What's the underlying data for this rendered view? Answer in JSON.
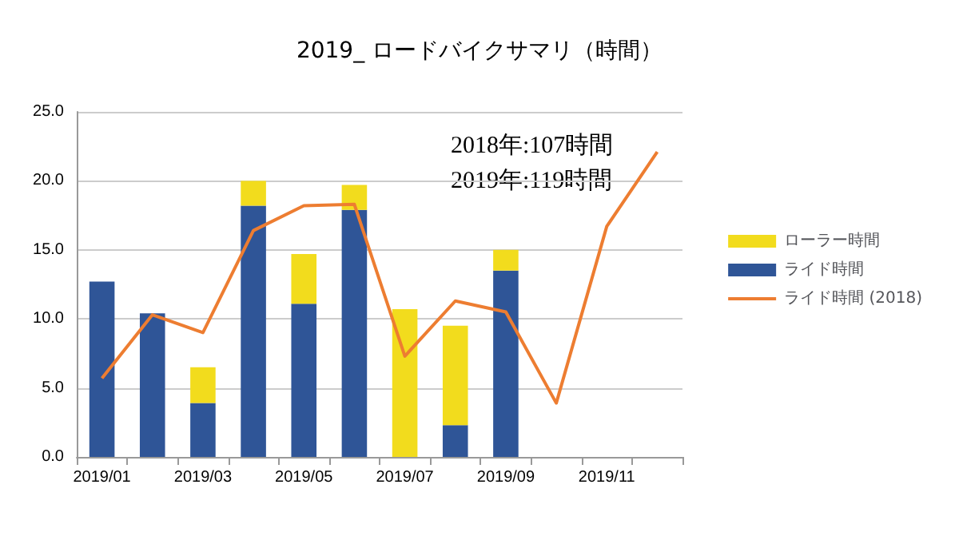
{
  "chart_data": {
    "type": "bar",
    "title": "2019_ ロードバイクサマリ（時間）",
    "categories": [
      "2019/01",
      null,
      "2019/03",
      null,
      "2019/05",
      null,
      "2019/07",
      null,
      "2019/09",
      null,
      "2019/11",
      null
    ],
    "stacked": true,
    "series": [
      {
        "name": "ライド時間",
        "color": "#2f5597",
        "values": [
          12.7,
          10.4,
          3.9,
          18.2,
          11.1,
          17.9,
          0,
          2.3,
          13.5,
          null,
          null,
          null
        ]
      },
      {
        "name": "ローラー時間",
        "color": "#f2dc1d",
        "values": [
          0,
          0,
          2.6,
          1.8,
          3.6,
          1.8,
          10.7,
          7.2,
          1.5,
          null,
          null,
          null
        ]
      },
      {
        "name": "ライド時間 (2018)",
        "type": "line",
        "color": "#ed7d31",
        "values": [
          5.7,
          10.3,
          9.0,
          16.4,
          18.2,
          18.3,
          7.3,
          11.3,
          10.5,
          3.9,
          16.7,
          22.1
        ]
      }
    ],
    "ylim": [
      0,
      25
    ],
    "yticks": [
      {
        "value": 0,
        "label": "0.0"
      },
      {
        "value": 5,
        "label": "5.0"
      },
      {
        "value": 10,
        "label": "10.0"
      },
      {
        "value": 15,
        "label": "15.0"
      },
      {
        "value": 20,
        "label": "20.0"
      },
      {
        "value": 25,
        "label": "25.0"
      }
    ],
    "grid": "y",
    "legend": "right",
    "marker": "none",
    "annotations": [
      "2018年:107時間",
      "2019年:119時間"
    ]
  }
}
